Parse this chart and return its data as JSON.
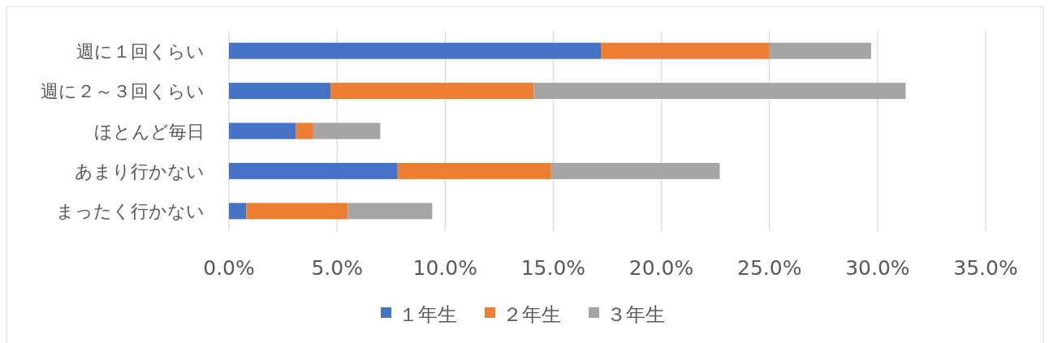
{
  "chart_data": {
    "type": "bar",
    "orientation": "horizontal",
    "stacked": true,
    "categories": [
      "週に１回くらい",
      "週に２～３回くらい",
      "ほとんど毎日",
      "あまり行かない",
      "まったく行かない"
    ],
    "series": [
      {
        "name": "１年生",
        "color": "#4472c4",
        "values": [
          17.2,
          4.7,
          3.1,
          7.8,
          0.8
        ]
      },
      {
        "name": "２年生",
        "color": "#ed7d31",
        "values": [
          7.8,
          9.4,
          0.8,
          7.1,
          4.7
        ]
      },
      {
        "name": "３年生",
        "color": "#a5a5a5",
        "values": [
          4.7,
          17.2,
          3.1,
          7.8,
          3.9
        ]
      }
    ],
    "xlim": [
      0,
      35
    ],
    "xticks": [
      {
        "value": 0,
        "label": "0.0%"
      },
      {
        "value": 5,
        "label": "5.0%"
      },
      {
        "value": 10,
        "label": "10.0%"
      },
      {
        "value": 15,
        "label": "15.0%"
      },
      {
        "value": 20,
        "label": "20.0%"
      },
      {
        "value": 25,
        "label": "25.0%"
      },
      {
        "value": 30,
        "label": "30.0%"
      },
      {
        "value": 35,
        "label": "35.0%"
      }
    ],
    "grid": "x",
    "legend": "bottom"
  }
}
